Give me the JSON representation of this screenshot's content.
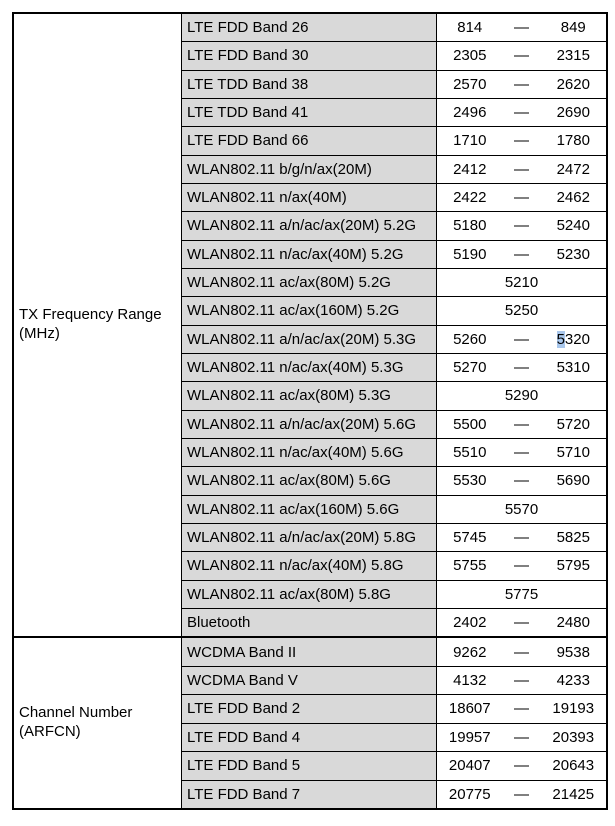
{
  "colors": {
    "background": "#ffffff",
    "band_cell_bg": "#d9d9d9",
    "border": "#000000",
    "selection_highlight": "#a9c7ec",
    "text": "#000000"
  },
  "table": {
    "dash": "—",
    "sections": [
      {
        "label": "TX Frequency Range (MHz)",
        "rows": [
          {
            "band": "LTE FDD Band 26",
            "min": "814",
            "max": "849"
          },
          {
            "band": "LTE FDD Band 30",
            "min": "2305",
            "max": "2315"
          },
          {
            "band": "LTE TDD Band 38",
            "min": "2570",
            "max": "2620"
          },
          {
            "band": "LTE TDD Band 41",
            "min": "2496",
            "max": "2690"
          },
          {
            "band": "LTE FDD Band 66",
            "min": "1710",
            "max": "1780"
          },
          {
            "band": "WLAN802.11 b/g/n/ax(20M)",
            "min": "2412",
            "max": "2472"
          },
          {
            "band": "WLAN802.11 n/ax(40M)",
            "min": "2422",
            "max": "2462"
          },
          {
            "band": "WLAN802.11 a/n/ac/ax(20M) 5.2G",
            "min": "5180",
            "max": "5240"
          },
          {
            "band": "WLAN802.11 n/ac/ax(40M) 5.2G",
            "min": "5190",
            "max": "5230"
          },
          {
            "band": "WLAN802.11 ac/ax(80M) 5.2G",
            "value": "5210"
          },
          {
            "band": "WLAN802.11 ac/ax(160M) 5.2G",
            "value": "5250"
          },
          {
            "band": "WLAN802.11 a/n/ac/ax(20M) 5.3G",
            "min": "5260",
            "max": "5320",
            "max_highlight_first_char": true
          },
          {
            "band": "WLAN802.11 n/ac/ax(40M) 5.3G",
            "min": "5270",
            "max": "5310"
          },
          {
            "band": "WLAN802.11 ac/ax(80M) 5.3G",
            "value": "5290"
          },
          {
            "band": "WLAN802.11 a/n/ac/ax(20M) 5.6G",
            "min": "5500",
            "max": "5720"
          },
          {
            "band": "WLAN802.11 n/ac/ax(40M) 5.6G",
            "min": "5510",
            "max": "5710"
          },
          {
            "band": "WLAN802.11 ac/ax(80M) 5.6G",
            "min": "5530",
            "max": "5690"
          },
          {
            "band": "WLAN802.11 ac/ax(160M) 5.6G",
            "value": "5570"
          },
          {
            "band": "WLAN802.11 a/n/ac/ax(20M) 5.8G",
            "min": "5745",
            "max": "5825"
          },
          {
            "band": "WLAN802.11 n/ac/ax(40M) 5.8G",
            "min": "5755",
            "max": "5795"
          },
          {
            "band": "WLAN802.11 ac/ax(80M) 5.8G",
            "value": "5775"
          },
          {
            "band": "Bluetooth",
            "min": "2402",
            "max": "2480"
          }
        ]
      },
      {
        "label": "Channel Number (ARFCN)",
        "rows": [
          {
            "band": "WCDMA Band II",
            "min": "9262",
            "max": "9538"
          },
          {
            "band": "WCDMA Band V",
            "min": "4132",
            "max": "4233"
          },
          {
            "band": "LTE FDD Band 2",
            "min": "18607",
            "max": "19193"
          },
          {
            "band": "LTE FDD Band 4",
            "min": "19957",
            "max": "20393"
          },
          {
            "band": "LTE FDD Band 5",
            "min": "20407",
            "max": "20643"
          },
          {
            "band": "LTE FDD Band 7",
            "min": "20775",
            "max": "21425"
          }
        ]
      }
    ]
  }
}
